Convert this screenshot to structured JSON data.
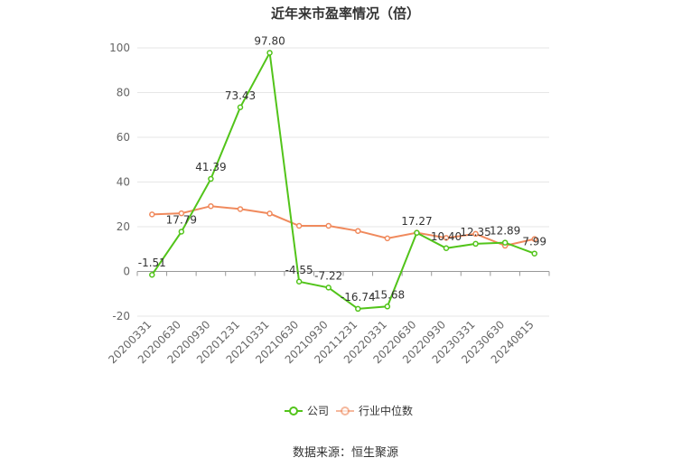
{
  "title": "近年来市盈率情况（倍）",
  "source": "数据来源：恒生聚源",
  "chart_data": {
    "type": "line",
    "title": "近年来市盈率情况（倍）",
    "xlabel": "",
    "ylabel": "",
    "ylim": [
      -20,
      100
    ],
    "yticks": [
      -20,
      0,
      20,
      40,
      60,
      80,
      100
    ],
    "grid": true,
    "legend_position": "bottom",
    "categories": [
      "20200331",
      "20200630",
      "20200930",
      "20201231",
      "20210331",
      "20210630",
      "20210930",
      "20211231",
      "20220331",
      "20220630",
      "20220930",
      "20230331",
      "20230630",
      "20240815"
    ],
    "series": [
      {
        "name": "公司",
        "color": "#52c41a",
        "labels": true,
        "values": [
          -1.51,
          17.79,
          41.39,
          73.43,
          97.8,
          -4.55,
          -7.22,
          -16.74,
          -15.68,
          17.27,
          10.4,
          12.35,
          12.89,
          7.99
        ]
      },
      {
        "name": "行业中位数",
        "color": "#f08a5d",
        "labels": false,
        "values": [
          25.5,
          26.0,
          29.2,
          27.9,
          25.9,
          20.4,
          20.4,
          18.1,
          14.8,
          17.3,
          15.0,
          16.8,
          11.5,
          14.5
        ]
      }
    ]
  }
}
